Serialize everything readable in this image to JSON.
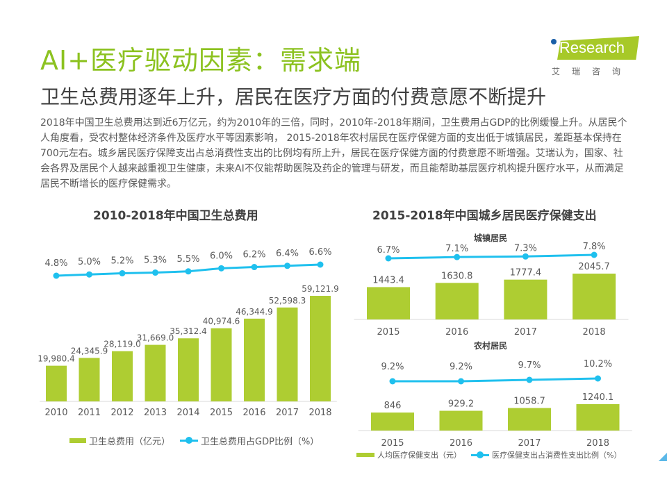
{
  "header": {
    "title": "AI+医疗驱动因素：需求端",
    "subtitle": "卫生总费用逐年上升，居民在医疗方面的付费意愿不断提升",
    "body": "2018年中国卫生总费用达到近6万亿元，约为2010年的三倍，同时，2010年-2018年期间，卫生费用占GDP的比例缓慢上升。从居民个人角度看，受农村整体经济条件及医疗水平等因素影响， 2015-2018年农村居民在医疗保健方面的支出低于城镇居民，差距基本保持在700元左右。城乡居民医疗保障支出占总消费性支出的比例均有所上升，居民在医疗保健方面的付费意愿不断增强。艾瑞认为，国家、社会各界及居民个人越来越重视卫生健康，未来AI不仅能帮助医院及药企的管理与研发，而且能帮助基层医疗机构提升医疗水平，从而满足居民不断增长的医疗保健需求。"
  },
  "logo": {
    "text": "iResearch",
    "cn": "艾瑞咨询"
  },
  "colors": {
    "bar": "#aecd32",
    "line": "#1fc0ee",
    "title": "#8cc220"
  },
  "chart_data": [
    {
      "type": "bar+line",
      "title": "2010-2018年中国卫生总费用",
      "categories": [
        "2010",
        "2011",
        "2012",
        "2013",
        "2014",
        "2015",
        "2016",
        "2017",
        "2018"
      ],
      "series": [
        {
          "name": "卫生总费用（亿元）",
          "type": "bar",
          "values": [
            19980.4,
            24345.9,
            28119.0,
            31669.0,
            35312.4,
            40974.6,
            46344.9,
            52598.3,
            59121.9
          ],
          "labels": [
            "19,980.4",
            "24,345.9",
            "28,119.0",
            "31,669.0",
            "35,312.4",
            "40,974.6",
            "46,344.9",
            "52,598.3",
            "59,121.9"
          ]
        },
        {
          "name": "卫生总费用占GDP比例（%）",
          "type": "line",
          "values": [
            4.8,
            5.0,
            5.2,
            5.3,
            5.5,
            6.0,
            6.2,
            6.4,
            6.6
          ],
          "labels": [
            "4.8%",
            "5.0%",
            "5.2%",
            "5.3%",
            "5.5%",
            "6.0%",
            "6.2%",
            "6.4%",
            "6.6%"
          ]
        }
      ],
      "legend": "bottom"
    },
    {
      "type": "bar+line",
      "title": "2015-2018年中国城乡居民医疗保健支出",
      "subtitle": "城镇居民",
      "categories": [
        "2015",
        "2016",
        "2017",
        "2018"
      ],
      "series": [
        {
          "name": "人均医疗保健支出（元）",
          "type": "bar",
          "values": [
            1443.4,
            1630.8,
            1777.4,
            2045.7
          ],
          "labels": [
            "1443.4",
            "1630.8",
            "1777.4",
            "2045.7"
          ]
        },
        {
          "name": "医疗保健支出占消费性支出比例（%）",
          "type": "line",
          "values": [
            6.7,
            7.1,
            7.3,
            7.8
          ],
          "labels": [
            "6.7%",
            "7.1%",
            "7.3%",
            "7.8%"
          ]
        }
      ]
    },
    {
      "type": "bar+line",
      "subtitle": "农村居民",
      "categories": [
        "2015",
        "2016",
        "2017",
        "2018"
      ],
      "series": [
        {
          "name": "人均医疗保健支出（元）",
          "type": "bar",
          "values": [
            846,
            929.2,
            1058.7,
            1240.1
          ],
          "labels": [
            "846",
            "929.2",
            "1058.7",
            "1240.1"
          ]
        },
        {
          "name": "医疗保健支出占消费性支出比例（%）",
          "type": "line",
          "values": [
            9.2,
            9.2,
            9.7,
            10.2
          ],
          "labels": [
            "9.2%",
            "9.2%",
            "9.7%",
            "10.2%"
          ]
        }
      ],
      "legend": "bottom"
    }
  ]
}
